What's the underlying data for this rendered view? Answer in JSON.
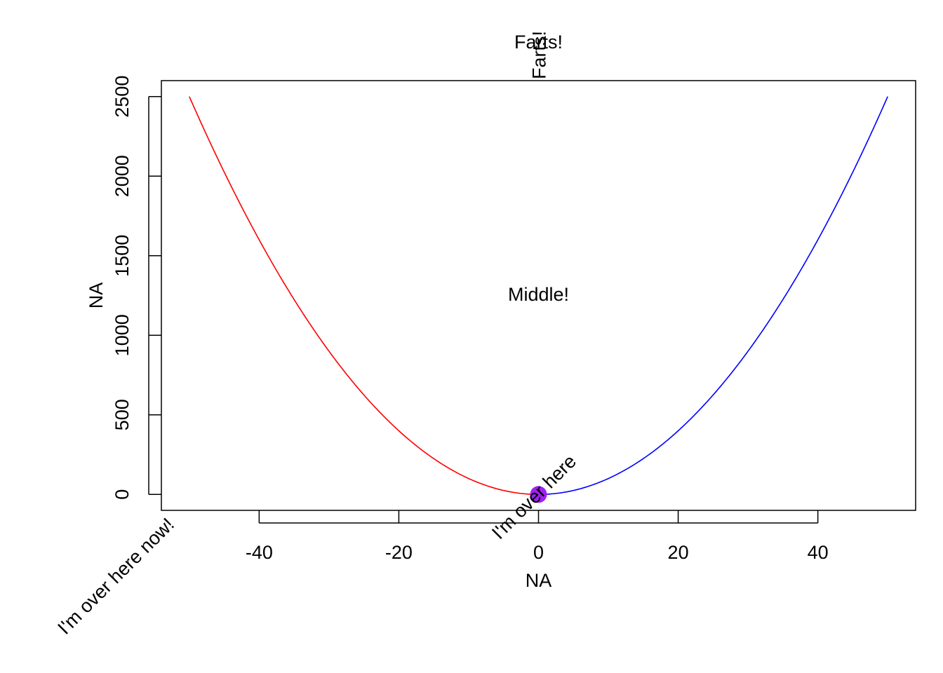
{
  "chart_data": {
    "type": "line",
    "title": "",
    "xlabel": "NA",
    "ylabel": "NA",
    "xlim": [
      -54,
      54
    ],
    "ylim": [
      -100,
      2600
    ],
    "x_ticks": [
      -40,
      -20,
      0,
      20,
      40
    ],
    "y_ticks": [
      0,
      500,
      1000,
      1500,
      2000,
      2500
    ],
    "series": [
      {
        "color": "#ff0000",
        "function": "x^2",
        "domain": [
          -50,
          0
        ]
      },
      {
        "color": "#0000ff",
        "function": "x^2",
        "domain": [
          0,
          50
        ]
      }
    ],
    "point": {
      "x": 0,
      "y": 0,
      "color": "#a020f0"
    },
    "annotations": [
      {
        "text": "Farts!",
        "x": 0,
        "position": "top margin"
      },
      {
        "text": "Farts!",
        "x": 0,
        "position": "top margin",
        "rotation": "vertical"
      },
      {
        "text": "Middle!",
        "x": 0,
        "y": 1230
      },
      {
        "text": "I'm over here",
        "x": 0,
        "y": 0,
        "rotation": "45 degrees"
      },
      {
        "text": "I'm over here now!",
        "x": -50,
        "position": "below x-axis",
        "rotation": "45 degrees"
      }
    ],
    "grid": false,
    "legend": "none"
  }
}
